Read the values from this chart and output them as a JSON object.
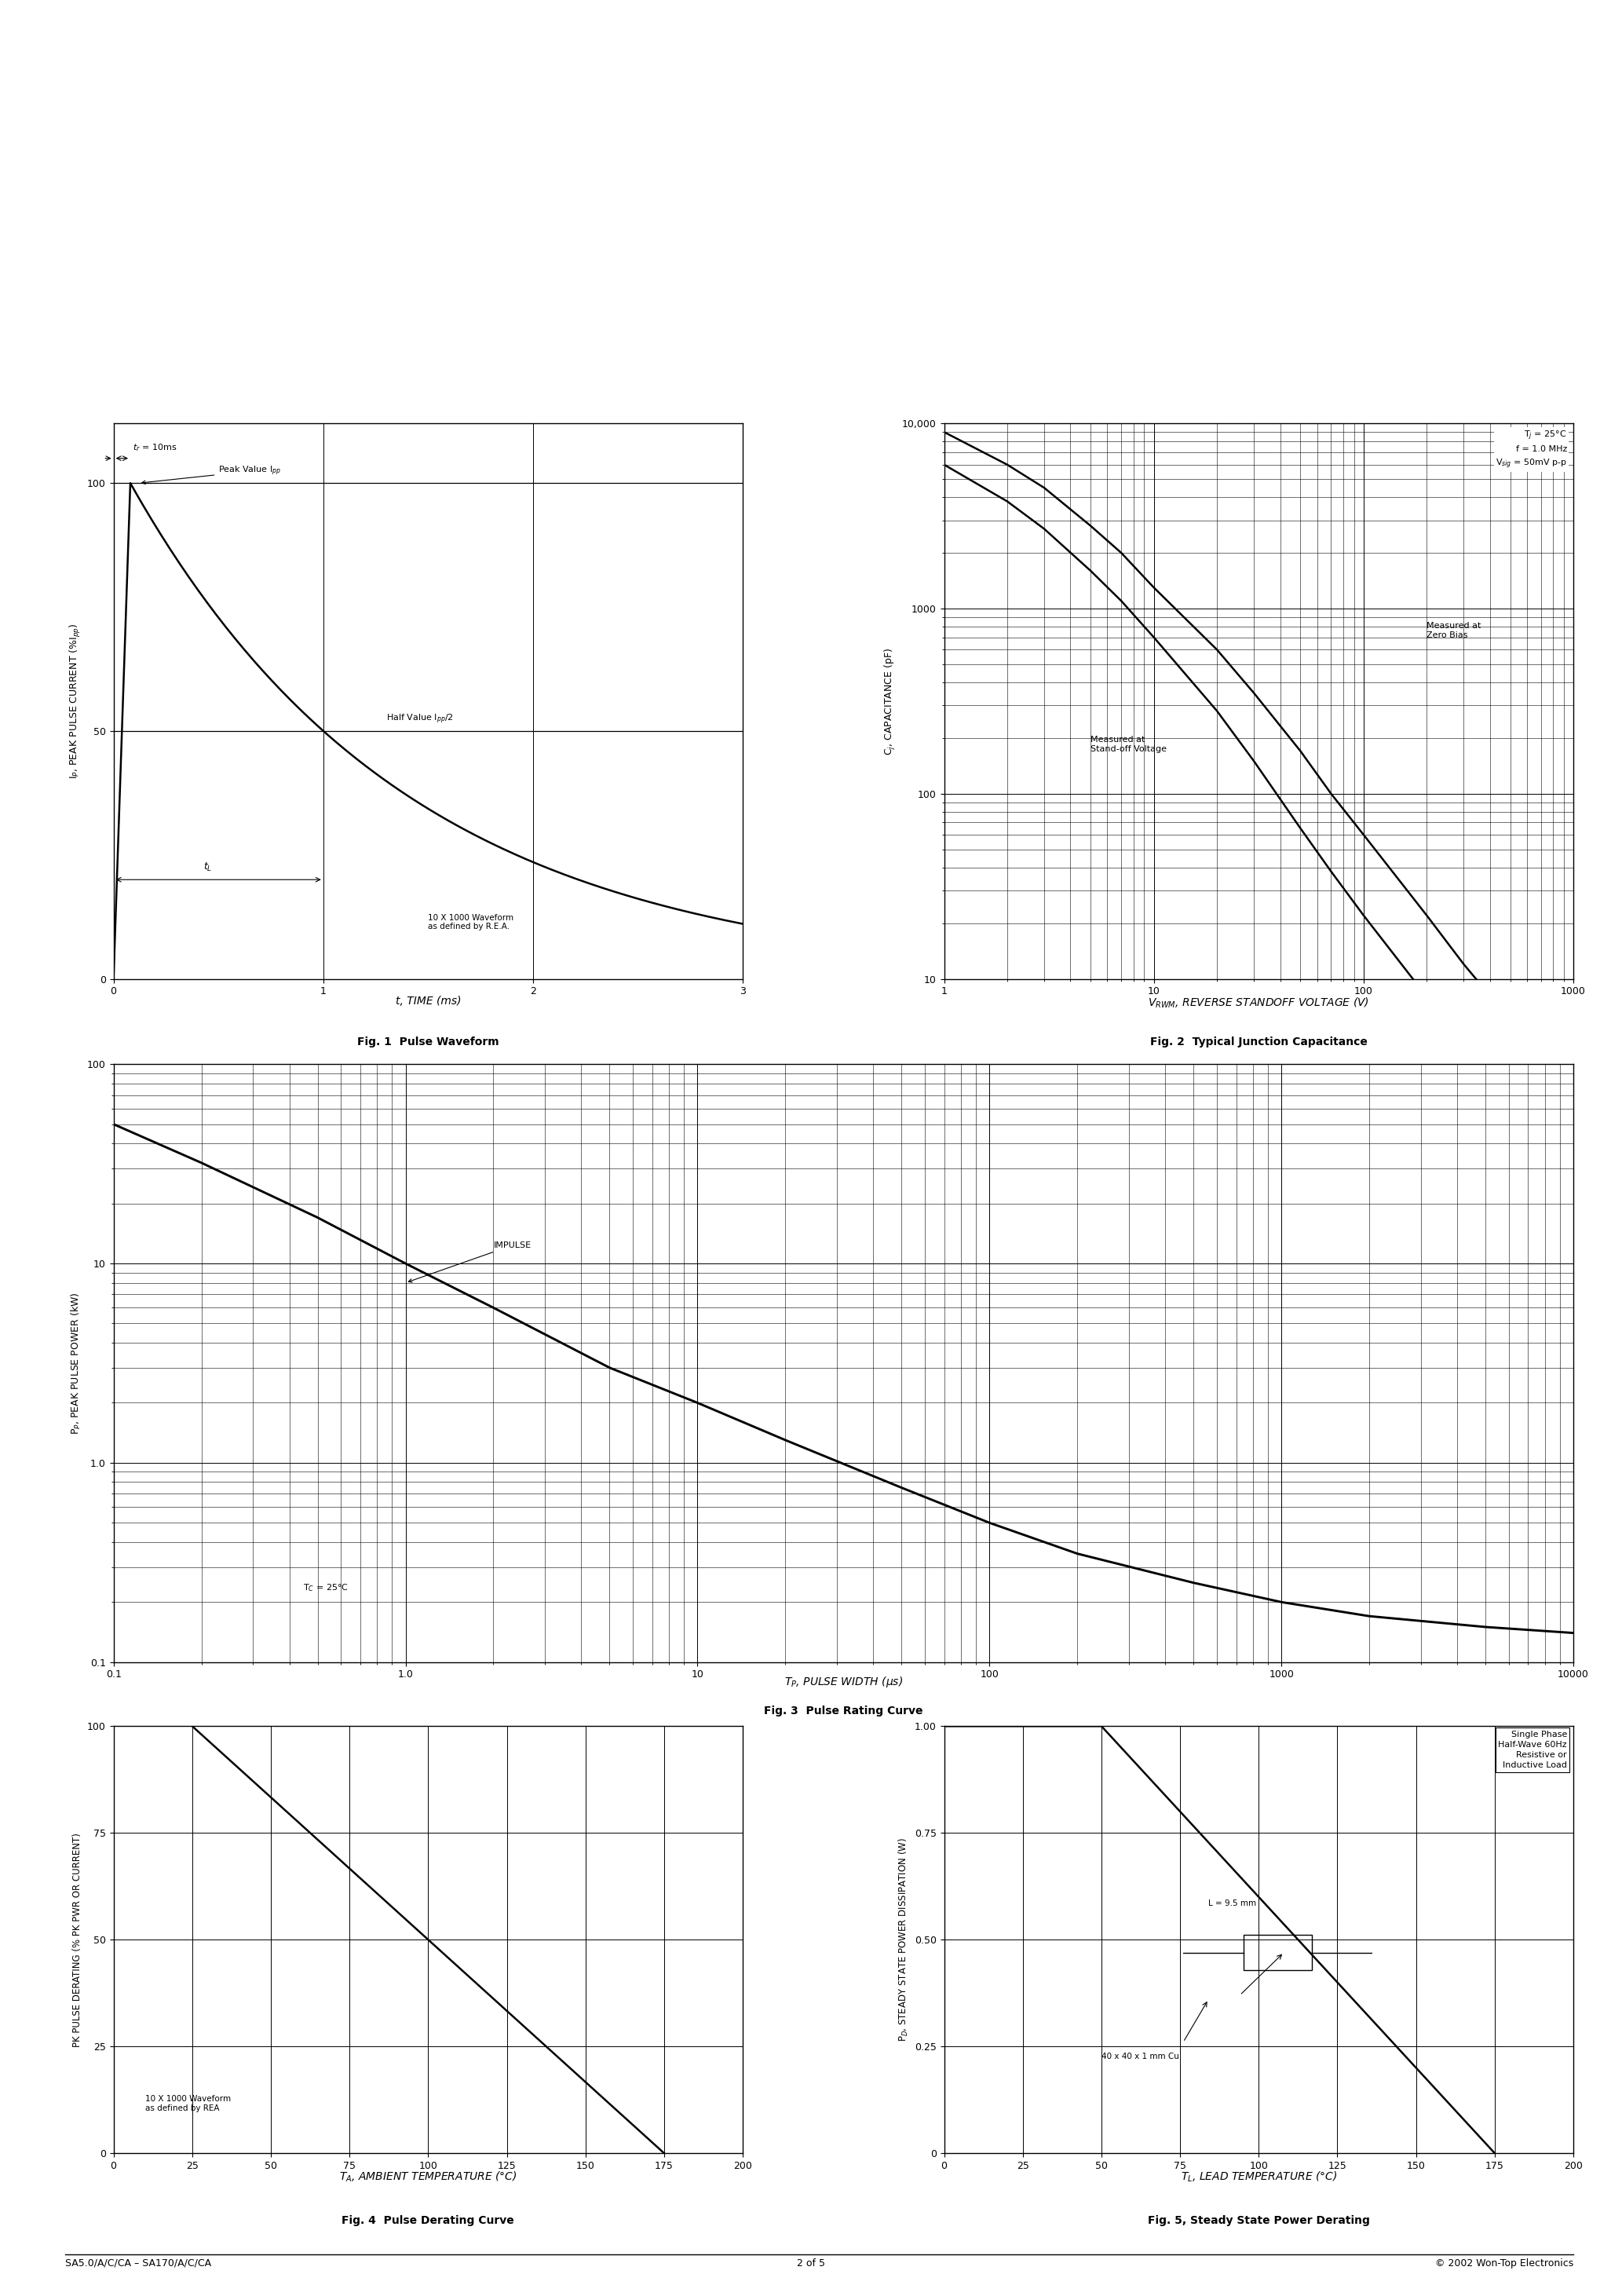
{
  "page_title_left": "SA5.0/A/C/CA – SA170/A/C/CA",
  "page_title_center": "2 of 5",
  "page_title_right": "© 2002 Won-Top Electronics",
  "fig1_caption_line1": "t, TIME (ms)",
  "fig1_caption_line2": "Fig. 1  Pulse Waveform",
  "fig2_caption_line1": "VⱼWM, REVERSE STANDOFF VOLTAGE (V)",
  "fig2_caption_line2": "Fig. 2  Typical Junction Capacitance",
  "fig3_caption_line1": "Tₚ, PULSE WIDTH (μs)",
  "fig3_caption_line2": "Fig. 3  Pulse Rating Curve",
  "fig4_caption_line1": "Tₐ, AMBIENT TEMPERATURE (°C)",
  "fig4_caption_line2": "Fig. 4  Pulse Derating Curve",
  "fig5_caption_line1": "Tₗ, LEAD TEMPERATURE (°C)",
  "fig5_caption_line2": "Fig. 5, Steady State Power Derating",
  "background_color": "#ffffff",
  "line_color": "#000000",
  "grid_color": "#000000",
  "text_color": "#000000",
  "fig1_ylabel": "I$_P$, PEAK PULSE CURRENT (%I$_{pp}$)",
  "fig2_ylabel": "C$_j$, CAPACITANCE (pF)",
  "fig3_ylabel": "P$_P$, PEAK PULSE POWER (kW)",
  "fig4_ylabel": "PK PULSE DERATING (% PK PWR OR CURRENT)",
  "fig5_ylabel": "P$_D$, STEADY STATE POWER DISSIPATION (W)"
}
